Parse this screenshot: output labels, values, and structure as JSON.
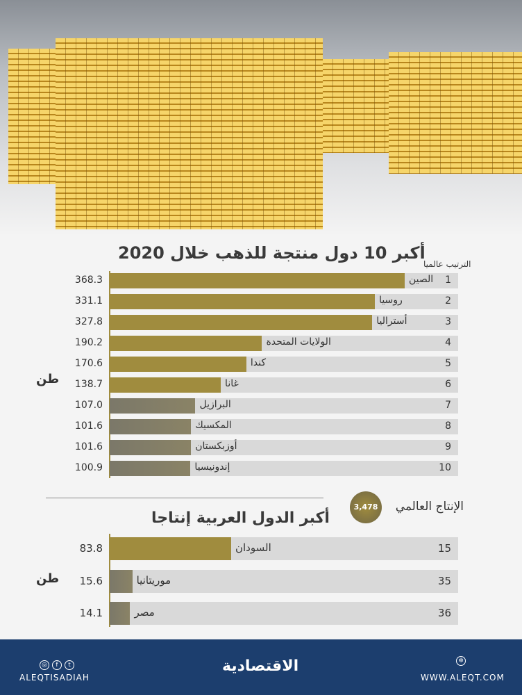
{
  "chart_data": [
    {
      "type": "bar",
      "orientation": "horizontal",
      "title": "أكبر 10 دول منتجة للذهب خلال 2020",
      "rank_header": "الترتيب عالميا",
      "unit": "طن",
      "categories": [
        "الصين",
        "روسيا",
        "أستراليا",
        "الولايات المتحدة",
        "كندا",
        "غانا",
        "البرازيل",
        "المكسيك",
        "أوزبكستان",
        "إندونيسيا"
      ],
      "ranks": [
        "1",
        "2",
        "3",
        "4",
        "5",
        "6",
        "7",
        "8",
        "9",
        "10"
      ],
      "values": [
        368.3,
        331.1,
        327.8,
        190.2,
        170.6,
        138.7,
        107.0,
        101.6,
        101.6,
        100.9
      ],
      "value_labels": [
        "368.3",
        "331.1",
        "327.8",
        "190.2",
        "170.6",
        "138.7",
        "107.0",
        "101.6",
        "101.6",
        "100.9"
      ]
    },
    {
      "type": "bar",
      "orientation": "horizontal",
      "title": "أكبر الدول العربية إنتاجا",
      "unit": "طن",
      "categories": [
        "السودان",
        "موريتانيا",
        "مصر"
      ],
      "ranks": [
        "15",
        "35",
        "36"
      ],
      "values": [
        83.8,
        15.6,
        14.1
      ],
      "value_labels": [
        "83.8",
        "15.6",
        "14.1"
      ]
    }
  ],
  "world": {
    "label": "الإنتاج العالمي",
    "value": "3,478"
  },
  "colors": {
    "gold": "#a08c3e",
    "muted": "#8a8366",
    "row": "#d9d9d9",
    "footer": "#1c3e6e"
  },
  "footer": {
    "social": "ALEQTISADIAH",
    "logo": "الاقتصادية",
    "website": "WWW.ALEQT.COM",
    "icons": [
      "instagram-icon",
      "facebook-icon",
      "twitter-icon",
      "web-icon"
    ]
  }
}
